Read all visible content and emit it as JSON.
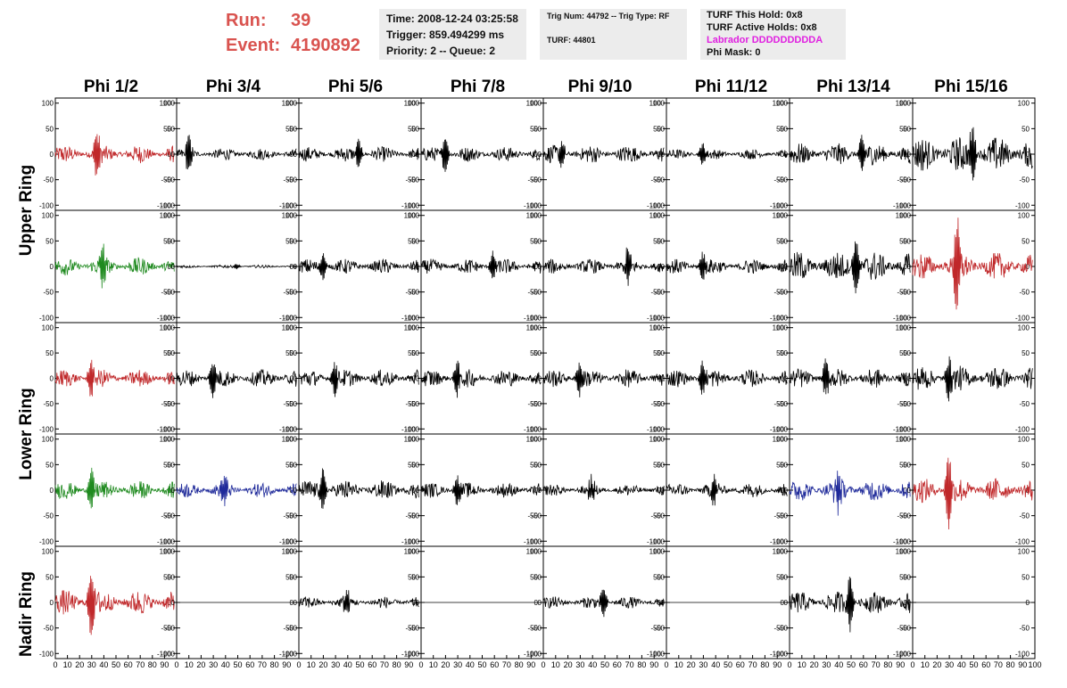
{
  "header": {
    "run_label": "Run:",
    "run_value": "39",
    "event_label": "Event:",
    "event_value": "4190892",
    "time": "Time: 2008-12-24 03:25:58",
    "trigger": "Trigger: 859.494299 ms",
    "priority": "Priority: 2 -- Queue: 2",
    "trig_num": "Trig Num: 44792 -- Trig Type: RF",
    "turf": "TURF: 44801",
    "turf_this_hold": "TURF This Hold: 0x8",
    "turf_active_holds": "TURF Active Holds: 0x8",
    "labrador": "Labrador DDDDDDDDDA",
    "phi_mask": "Phi Mask: 0",
    "labrador_color": "#e020e0",
    "run_color": "#d9534f"
  },
  "columns": [
    "Phi 1/2",
    "Phi 3/4",
    "Phi 5/6",
    "Phi 7/8",
    "Phi 9/10",
    "Phi 11/12",
    "Phi 13/14",
    "Phi 15/16"
  ],
  "rings": [
    {
      "label": "Upper Ring",
      "rows": [
        0,
        1
      ]
    },
    {
      "label": "Lower Ring",
      "rows": [
        2,
        3
      ]
    },
    {
      "label": "Nadir Ring",
      "rows": [
        4
      ]
    }
  ],
  "chart_data": {
    "type": "line",
    "description_axes": "waveform grid",
    "x_range": [
      0,
      100
    ],
    "x_ticks": [
      0,
      10,
      20,
      30,
      40,
      50,
      60,
      70,
      80,
      90,
      100
    ],
    "x_tick_labels": [
      "0",
      "10",
      "20",
      "30",
      "40",
      "50",
      "60",
      "70",
      "80",
      "90",
      "100"
    ],
    "y_range": [
      -110,
      110
    ],
    "y_ticks": [
      -100,
      -50,
      0,
      50,
      100
    ],
    "y_tick_labels": [
      "-100",
      "-50",
      "0",
      "50",
      "100"
    ],
    "colors": {
      "red": "#c0282a",
      "green": "#1f8a1f",
      "blue": "#1f2a9a",
      "black": "#000000"
    },
    "panels": [
      [
        {
          "color": "red",
          "amp": 18,
          "spike": 45,
          "spike_at": 0.35
        },
        {
          "color": "black",
          "amp": 12,
          "spike": 35,
          "spike_at": 0.1
        },
        {
          "color": "black",
          "amp": 15,
          "spike": 30,
          "spike_at": 0.5
        },
        {
          "color": "black",
          "amp": 15,
          "spike": 40,
          "spike_at": 0.2
        },
        {
          "color": "black",
          "amp": 18,
          "spike": 35,
          "spike_at": 0.15
        },
        {
          "color": "black",
          "amp": 10,
          "spike": 25,
          "spike_at": 0.3
        },
        {
          "color": "black",
          "amp": 22,
          "spike": 40,
          "spike_at": 0.6
        },
        {
          "color": "black",
          "amp": 35,
          "spike": 60,
          "spike_at": 0.5
        }
      ],
      [
        {
          "color": "green",
          "amp": 18,
          "spike": 45,
          "spike_at": 0.4
        },
        {
          "color": "black",
          "amp": 3,
          "spike": 5,
          "spike_at": 0.5
        },
        {
          "color": "black",
          "amp": 15,
          "spike": 30,
          "spike_at": 0.2
        },
        {
          "color": "black",
          "amp": 15,
          "spike": 30,
          "spike_at": 0.6
        },
        {
          "color": "black",
          "amp": 15,
          "spike": 35,
          "spike_at": 0.7
        },
        {
          "color": "black",
          "amp": 15,
          "spike": 30,
          "spike_at": 0.3
        },
        {
          "color": "black",
          "amp": 30,
          "spike": 60,
          "spike_at": 0.55
        },
        {
          "color": "red",
          "amp": 28,
          "spike": 100,
          "spike_at": 0.37
        }
      ],
      [
        {
          "color": "red",
          "amp": 18,
          "spike": 40,
          "spike_at": 0.3
        },
        {
          "color": "black",
          "amp": 18,
          "spike": 35,
          "spike_at": 0.3
        },
        {
          "color": "black",
          "amp": 18,
          "spike": 35,
          "spike_at": 0.3
        },
        {
          "color": "black",
          "amp": 18,
          "spike": 35,
          "spike_at": 0.3
        },
        {
          "color": "black",
          "amp": 18,
          "spike": 35,
          "spike_at": 0.3
        },
        {
          "color": "black",
          "amp": 18,
          "spike": 35,
          "spike_at": 0.3
        },
        {
          "color": "black",
          "amp": 20,
          "spike": 40,
          "spike_at": 0.3
        },
        {
          "color": "black",
          "amp": 25,
          "spike": 40,
          "spike_at": 0.3
        }
      ],
      [
        {
          "color": "green",
          "amp": 18,
          "spike": 45,
          "spike_at": 0.3
        },
        {
          "color": "blue",
          "amp": 15,
          "spike": 25,
          "spike_at": 0.4
        },
        {
          "color": "black",
          "amp": 20,
          "spike": 45,
          "spike_at": 0.2
        },
        {
          "color": "black",
          "amp": 15,
          "spike": 30,
          "spike_at": 0.3
        },
        {
          "color": "black",
          "amp": 12,
          "spike": 25,
          "spike_at": 0.4
        },
        {
          "color": "black",
          "amp": 15,
          "spike": 30,
          "spike_at": 0.4
        },
        {
          "color": "blue",
          "amp": 22,
          "spike": 40,
          "spike_at": 0.4
        },
        {
          "color": "red",
          "amp": 25,
          "spike": 80,
          "spike_at": 0.3
        }
      ],
      [
        {
          "color": "red",
          "amp": 25,
          "spike": 70,
          "spike_at": 0.3
        },
        {
          "color": "black",
          "amp": 0,
          "spike": 0,
          "spike_at": 0.5
        },
        {
          "color": "black",
          "amp": 12,
          "spike": 25,
          "spike_at": 0.4
        },
        {
          "color": "black",
          "amp": 0,
          "spike": 0,
          "spike_at": 0.5
        },
        {
          "color": "black",
          "amp": 12,
          "spike": 30,
          "spike_at": 0.5
        },
        {
          "color": "black",
          "amp": 0,
          "spike": 0,
          "spike_at": 0.5
        },
        {
          "color": "black",
          "amp": 22,
          "spike": 60,
          "spike_at": 0.5
        },
        {
          "color": "black",
          "amp": 0,
          "spike": 0,
          "spike_at": 0.5
        }
      ]
    ]
  }
}
